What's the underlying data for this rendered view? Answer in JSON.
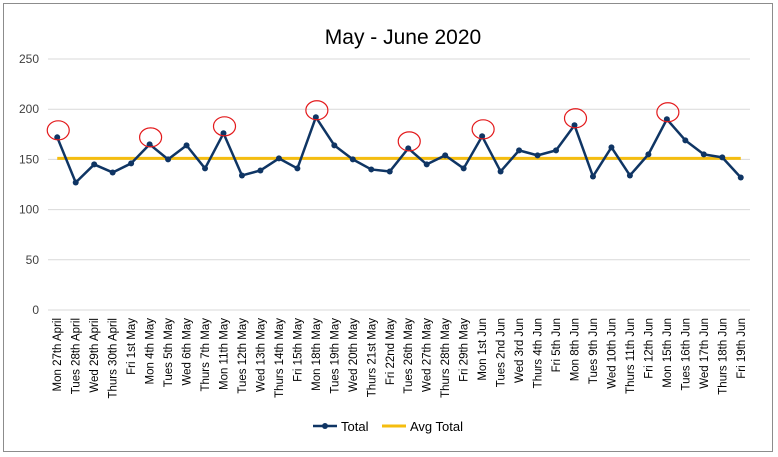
{
  "chart_data": {
    "type": "line",
    "title": "May - June 2020",
    "xlabel": "",
    "ylabel": "",
    "ylim": [
      0,
      250
    ],
    "yticks": [
      0,
      50,
      100,
      150,
      200,
      250
    ],
    "grid": true,
    "legend_position": "bottom",
    "categories": [
      "Mon 27th April",
      "Tues 28th April",
      "Wed 29th April",
      "Thurs 30th April",
      "Fri 1st May",
      "Mon 4th May",
      "Tues 5th May",
      "Wed 6th May",
      "Thurs 7th May",
      "Mon 11th May",
      "Tues 12th May",
      "Wed 13th May",
      "Thurs 14th May",
      "Fri 15th May",
      "Mon 18th May",
      "Tues 19th May",
      "Wed 20th May",
      "Thurs 21st May",
      "Fri 22nd May",
      "Tues 26th May",
      "Wed 27th May",
      "Thurs 28th May",
      "Fri 29th May",
      "Mon 1st Jun",
      "Tues 2nd Jun",
      "Wed 3rd Jun",
      "Thurs 4th Jun",
      "Fri 5th Jun",
      "Mon 8th Jun",
      "Tues 9th Jun",
      "Wed 10th Jun",
      "Thurs 11th Jun",
      "Fri 12th Jun",
      "Mon 15th Jun",
      "Tues 16th Jun",
      "Wed 17th Jun",
      "Thurs 18th Jun",
      "Fri 19th Jun"
    ],
    "series": [
      {
        "name": "Total",
        "color": "#0f3564",
        "values": [
          172,
          127,
          145,
          137,
          146,
          165,
          150,
          164,
          141,
          176,
          134,
          139,
          151,
          141,
          192,
          164,
          150,
          140,
          138,
          161,
          145,
          154,
          141,
          173,
          138,
          159,
          154,
          159,
          184,
          133,
          162,
          134,
          155,
          190,
          169,
          155,
          152,
          132
        ]
      },
      {
        "name": "Avg Total",
        "color": "#f5bd0f",
        "values": [
          151,
          151,
          151,
          151,
          151,
          151,
          151,
          151,
          151,
          151,
          151,
          151,
          151,
          151,
          151,
          151,
          151,
          151,
          151,
          151,
          151,
          151,
          151,
          151,
          151,
          151,
          151,
          151,
          151,
          151,
          151,
          151,
          151,
          151,
          151,
          151,
          151,
          151
        ]
      }
    ],
    "highlight_color": "#e31a1c",
    "highlighted_categories": [
      "Mon 27th April",
      "Mon 4th May",
      "Mon 11th May",
      "Mon 18th May",
      "Tues 26th May",
      "Mon 1st Jun",
      "Mon 8th Jun",
      "Mon 15th Jun"
    ]
  }
}
